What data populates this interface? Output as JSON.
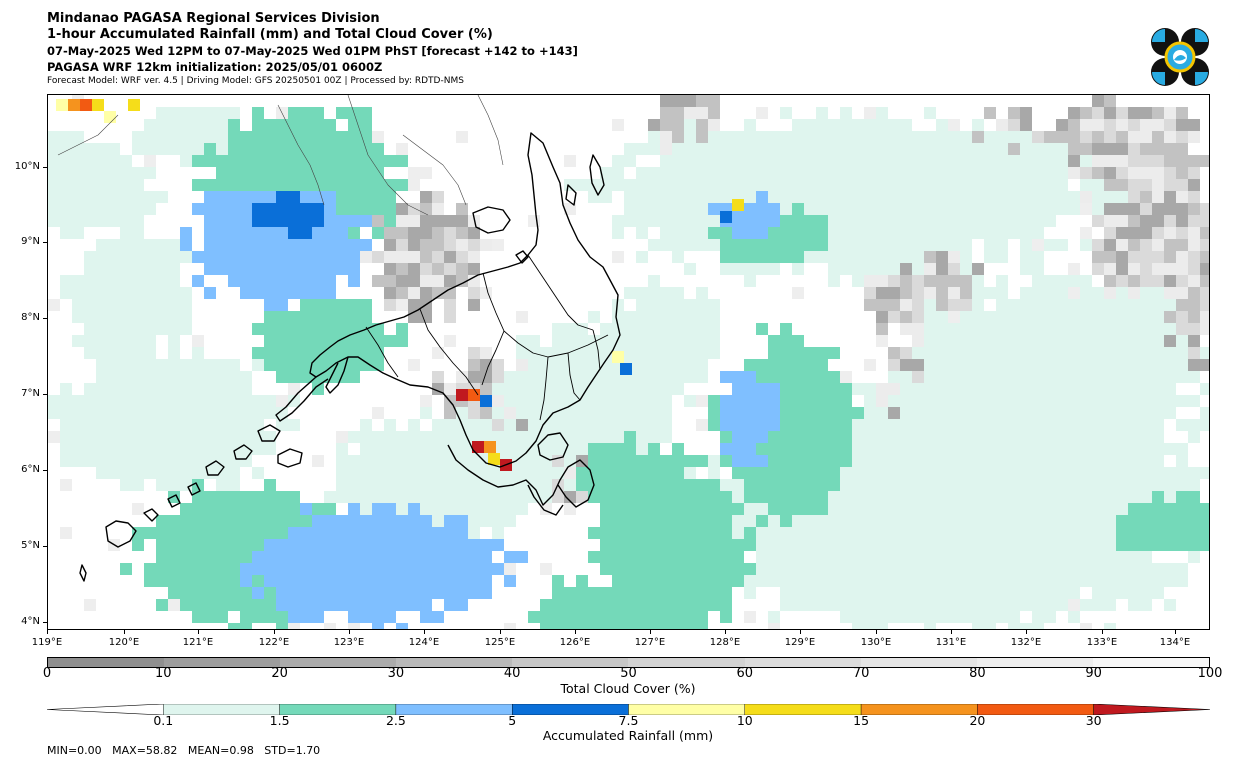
{
  "header": {
    "title": "Mindanao PAGASA Regional Services Division",
    "subtitle": "1-hour Accumulated Rainfall (mm) and Total Cloud Cover (%)",
    "valid_time": "07-May-2025 Wed 12PM to 07-May-2025 Wed 01PM PhST [forecast +142 to +143]",
    "init": "PAGASA WRF 12km initialization: 2025/05/01 0600Z",
    "model_info": "Forecast Model: WRF ver. 4.5 | Driving Model: GFS 20250501 00Z | Processed by: RDTD-NMS"
  },
  "logo": {
    "icon": "pagasa-logo"
  },
  "map": {
    "lat_labels": [
      "10°N",
      "9°N",
      "8°N",
      "7°N",
      "6°N",
      "5°N",
      "4°N"
    ],
    "lon_labels": [
      "119°E",
      "120°E",
      "121°E",
      "122°E",
      "123°E",
      "124°E",
      "125°E",
      "126°E",
      "127°E",
      "128°E",
      "129°E",
      "130°E",
      "131°E",
      "132°E",
      "133°E",
      "134°E"
    ]
  },
  "cloud_colorbar": {
    "label": "Total Cloud Cover (%)",
    "ticks": [
      "0",
      "10",
      "20",
      "30",
      "40",
      "50",
      "60",
      "70",
      "80",
      "90",
      "100"
    ],
    "colors": [
      "#8f8f8f",
      "#9d9d9d",
      "#ababab",
      "#b9b9b9",
      "#c7c7c7",
      "#d3d3d3",
      "#dcdcdc",
      "#e5e5e5",
      "#eeeeee",
      "#f7f7f7"
    ]
  },
  "rain_colorbar": {
    "label": "Accumulated Rainfall (mm)",
    "ticks": [
      "0.1",
      "1.5",
      "2.5",
      "5",
      "7.5",
      "10",
      "15",
      "20",
      "30"
    ],
    "colors": [
      "#dff5ee",
      "#74d9b9",
      "#7fbfff",
      "#0a6fd8",
      "#ffffa6",
      "#f5dd1a",
      "#f5931e",
      "#f25a12",
      "#c0191f"
    ]
  },
  "stats": "MIN=0.00   MAX=58.82   MEAN=0.98   STD=1.70"
}
